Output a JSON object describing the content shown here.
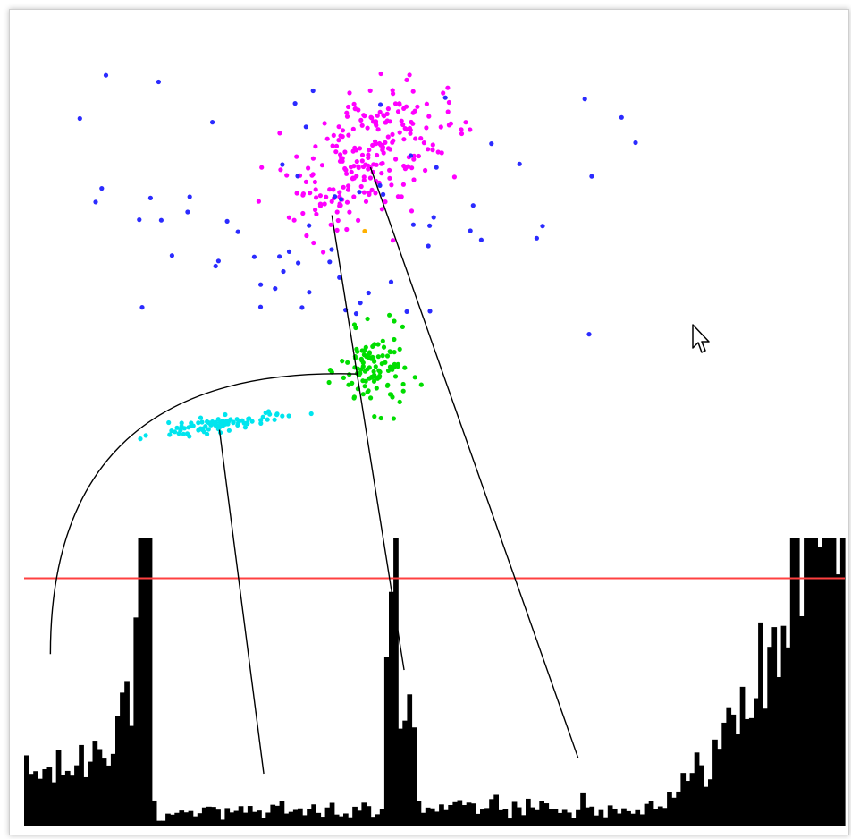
{
  "chart_data": {
    "type": "scatter",
    "title": "",
    "xlabel": "",
    "ylabel": "",
    "xlim": [
      0,
      100
    ],
    "ylim": [
      0,
      100
    ],
    "grid": false,
    "legend": "none",
    "clusters": [
      {
        "color": "#ff00ff",
        "n": 240,
        "cx": 42,
        "cy": 84,
        "sx": 6,
        "sy": 3.2,
        "angle_deg": 35,
        "points_per_unit": 1
      },
      {
        "color": "#00dd00",
        "n": 110,
        "cx": 42.7,
        "cy": 57,
        "sx": 2.1,
        "sy": 2.4,
        "angle_deg": 0
      },
      {
        "color": "#00e5ee",
        "n": 90,
        "cx": 23.5,
        "cy": 50.2,
        "sx": 3.9,
        "sy": 0.45,
        "angle_deg": 8
      },
      {
        "color": "#2b2bff",
        "n": 70,
        "cx": 37,
        "cy": 78,
        "sx": 17,
        "sy": 9,
        "angle_deg": 0
      }
    ],
    "outlier": {
      "color": "#ffb000",
      "x": 41.5,
      "y": 74.5
    },
    "threshold_line": {
      "y": 31,
      "color": "#ff4040"
    },
    "histogram": {
      "color": "#000000",
      "bins": 180,
      "max": 36
    },
    "connectors": [
      {
        "from": [
          23.8,
          49.6
        ],
        "to": [
          29.2,
          6.5
        ]
      },
      {
        "from": [
          37.5,
          76.5
        ],
        "to": [
          46.3,
          19.5
        ]
      },
      {
        "from": [
          42.2,
          82.5
        ],
        "to": [
          67.5,
          8.5
        ]
      }
    ],
    "arc": {
      "from": [
        40.5,
        56.6
      ],
      "to": [
        3.2,
        21.5
      ]
    },
    "histogram_peaks": [
      {
        "x": 14.5,
        "y": 36
      },
      {
        "x": 45,
        "y": 36
      },
      {
        "x": 94,
        "y": 36
      }
    ]
  },
  "cursor": {
    "icon": "mouse-pointer-icon"
  }
}
